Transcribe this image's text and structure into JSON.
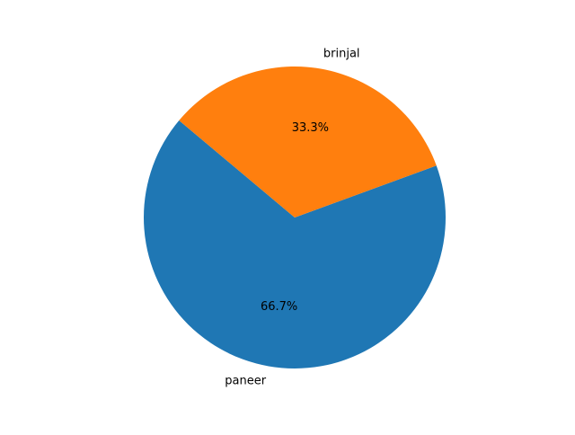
{
  "chart_data": {
    "type": "pie",
    "title": "",
    "slices": [
      {
        "label": "paneer",
        "value": 66.7,
        "pct_label": "66.7%",
        "color": "#1f77b4"
      },
      {
        "label": "brinjal",
        "value": 33.3,
        "pct_label": "33.3%",
        "color": "#ff7f0e"
      }
    ],
    "start_angle_deg": 140,
    "direction": "counterclockwise"
  }
}
